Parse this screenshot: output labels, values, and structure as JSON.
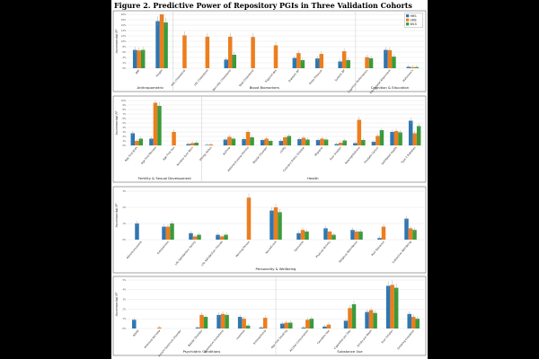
{
  "figure": {
    "title": "Figure 2. Predictive Power of Repository PGIs in Three Validation Cohorts"
  },
  "colors": {
    "HRS": "#2e76b0",
    "UKB": "#ee7d1c",
    "WLS": "#3a9a3a"
  },
  "chart_data": [
    {
      "type": "bar",
      "ylabel": "Incremental R²",
      "yticks": [
        "0%",
        "2%",
        "4%",
        "6%",
        "8%",
        "10%",
        "12%",
        "14%",
        "16%",
        "18%",
        "20%"
      ],
      "ylim": [
        0,
        20
      ],
      "grid": true,
      "legend": {
        "placement": "top-right",
        "entries": [
          "HRS",
          "UKB",
          "WLS"
        ]
      },
      "groups": [
        {
          "name": "Anthropometric",
          "categories": [
            "BMI",
            "Height"
          ]
        },
        {
          "name": "Blood Biomarkers",
          "categories": [
            "HDL Cholesterol",
            "LDL Cholesterol",
            "Non-HDL Cholesterol",
            "Total Cholesterol",
            "Triglycerides",
            "Diastolic BP",
            "Pulse Pressure",
            "Systolic BP"
          ]
        },
        {
          "name": "Cognition & Education",
          "categories": [
            "Cognitive Performance",
            "Educational Attainment",
            "Alzheimer's"
          ]
        }
      ],
      "series": [
        {
          "name": "HRS",
          "values": [
            6.8,
            17.5,
            null,
            null,
            3.2,
            null,
            null,
            3.8,
            3.6,
            2.5,
            null,
            6.8,
            0.5
          ]
        },
        {
          "name": "UKB",
          "values": [
            6.6,
            20.0,
            12.2,
            11.7,
            11.7,
            11.6,
            8.5,
            5.6,
            5.3,
            6.3,
            4.1,
            6.7,
            0.4
          ]
        },
        {
          "name": "WLS",
          "values": [
            6.8,
            17.0,
            null,
            null,
            5.0,
            null,
            null,
            3.0,
            null,
            3.0,
            3.7,
            4.3,
            0.4
          ]
        }
      ]
    },
    {
      "type": "bar",
      "ylabel": "Incremental R²",
      "yticks": [
        "0%",
        "1%",
        "2%",
        "3%",
        "4%",
        "5%",
        "6%",
        "7%",
        "8%",
        "9%",
        "10%"
      ],
      "ylim": [
        0,
        10
      ],
      "grid": true,
      "groups": [
        {
          "name": "Fertility & Sexual Development",
          "categories": [
            "Age First Birth",
            "Age First Menses",
            "Age First Sex",
            "Number Ever Born"
          ]
        },
        {
          "name": "Health",
          "categories": [
            "Allergy Pollen",
            "Asthma",
            "Asthma Eczema Rhinitis",
            "Bipolar Disorder",
            "COPD",
            "Coronary Artery Disease",
            "Migraine",
            "Ever Smoker",
            "Nearsightedness",
            "Prostate Cancer",
            "Self-Rated Health",
            "Type 2 Diabetes"
          ]
        }
      ],
      "series": [
        {
          "name": "HRS",
          "values": [
            2.7,
            1.5,
            null,
            0.3,
            0.1,
            1.3,
            1.4,
            1.2,
            1.0,
            1.4,
            1.2,
            0.3,
            0.5,
            0.8,
            3.0,
            5.5
          ]
        },
        {
          "name": "UKB",
          "values": [
            1.0,
            9.5,
            3.0,
            0.5,
            0.2,
            1.9,
            3.0,
            1.5,
            1.8,
            1.7,
            1.5,
            0.6,
            5.7,
            2.1,
            3.2,
            2.7
          ]
        },
        {
          "name": "WLS",
          "values": [
            1.5,
            8.8,
            null,
            0.6,
            null,
            1.5,
            1.8,
            1.0,
            2.1,
            1.3,
            1.3,
            1.1,
            1.2,
            3.4,
            2.9,
            4.3
          ]
        }
      ]
    },
    {
      "type": "bar",
      "ylabel": "Incremental R²",
      "yticks": [
        "0%",
        "1%",
        "2%",
        "3%"
      ],
      "ylim": [
        0,
        3
      ],
      "grid": true,
      "groups": [
        {
          "name": "Personality & Wellbeing",
          "categories": [
            "Adventurousness",
            "Extraversion",
            "Life Satisfaction: Family",
            "Life Satisfaction: Friends",
            "Morning Person",
            "Neuroticism",
            "Openness",
            "Physical Activity",
            "Religious Attendance",
            "Risk Tolerance",
            "Subjective Well-Being"
          ]
        }
      ],
      "series": [
        {
          "name": "HRS",
          "values": [
            1.0,
            0.8,
            0.4,
            0.3,
            null,
            1.8,
            0.4,
            0.7,
            0.6,
            0.1,
            1.3
          ]
        },
        {
          "name": "UKB",
          "values": [
            null,
            0.8,
            0.2,
            0.2,
            2.6,
            2.0,
            0.6,
            0.5,
            0.5,
            0.8,
            0.7
          ]
        },
        {
          "name": "WLS",
          "values": [
            null,
            1.0,
            0.3,
            0.3,
            null,
            1.7,
            0.5,
            0.3,
            0.5,
            null,
            0.6
          ]
        }
      ]
    },
    {
      "type": "bar",
      "ylabel": "Incremental R²",
      "yticks": [
        "0%",
        "1%",
        "2%",
        "3%",
        "4%",
        "5%"
      ],
      "ylim": [
        0,
        5
      ],
      "grid": true,
      "groups": [
        {
          "name": "Psychiatric Conditions",
          "categories": [
            "ADHD",
            "Anorexia Nervosa",
            "Autism Spectrum Disorder",
            "Bipolar Disorder",
            "Depressive Symptoms",
            "Insomnia",
            "Schizophrenia"
          ]
        },
        {
          "name": "Substance Use",
          "categories": [
            "Age First Smoking",
            "Alcohol Consumption",
            "Cannabis Use",
            "Cigarettes per Day",
            "Drinks per Week",
            "Ever Smoker",
            "Smoking Cessation"
          ]
        }
      ],
      "series": [
        {
          "name": "HRS",
          "values": [
            0.9,
            null,
            null,
            0.1,
            1.4,
            1.2,
            0.1,
            0.5,
            0.1,
            0.2,
            0.8,
            1.7,
            4.4,
            1.5
          ]
        },
        {
          "name": "UKB",
          "values": [
            null,
            0.1,
            null,
            1.4,
            1.5,
            1.0,
            1.1,
            0.6,
            0.9,
            0.4,
            2.1,
            1.9,
            4.5,
            1.2
          ]
        },
        {
          "name": "WLS",
          "values": [
            null,
            null,
            null,
            1.2,
            1.4,
            0.3,
            null,
            0.6,
            1.0,
            null,
            2.5,
            1.6,
            4.2,
            1.0
          ]
        }
      ]
    }
  ]
}
